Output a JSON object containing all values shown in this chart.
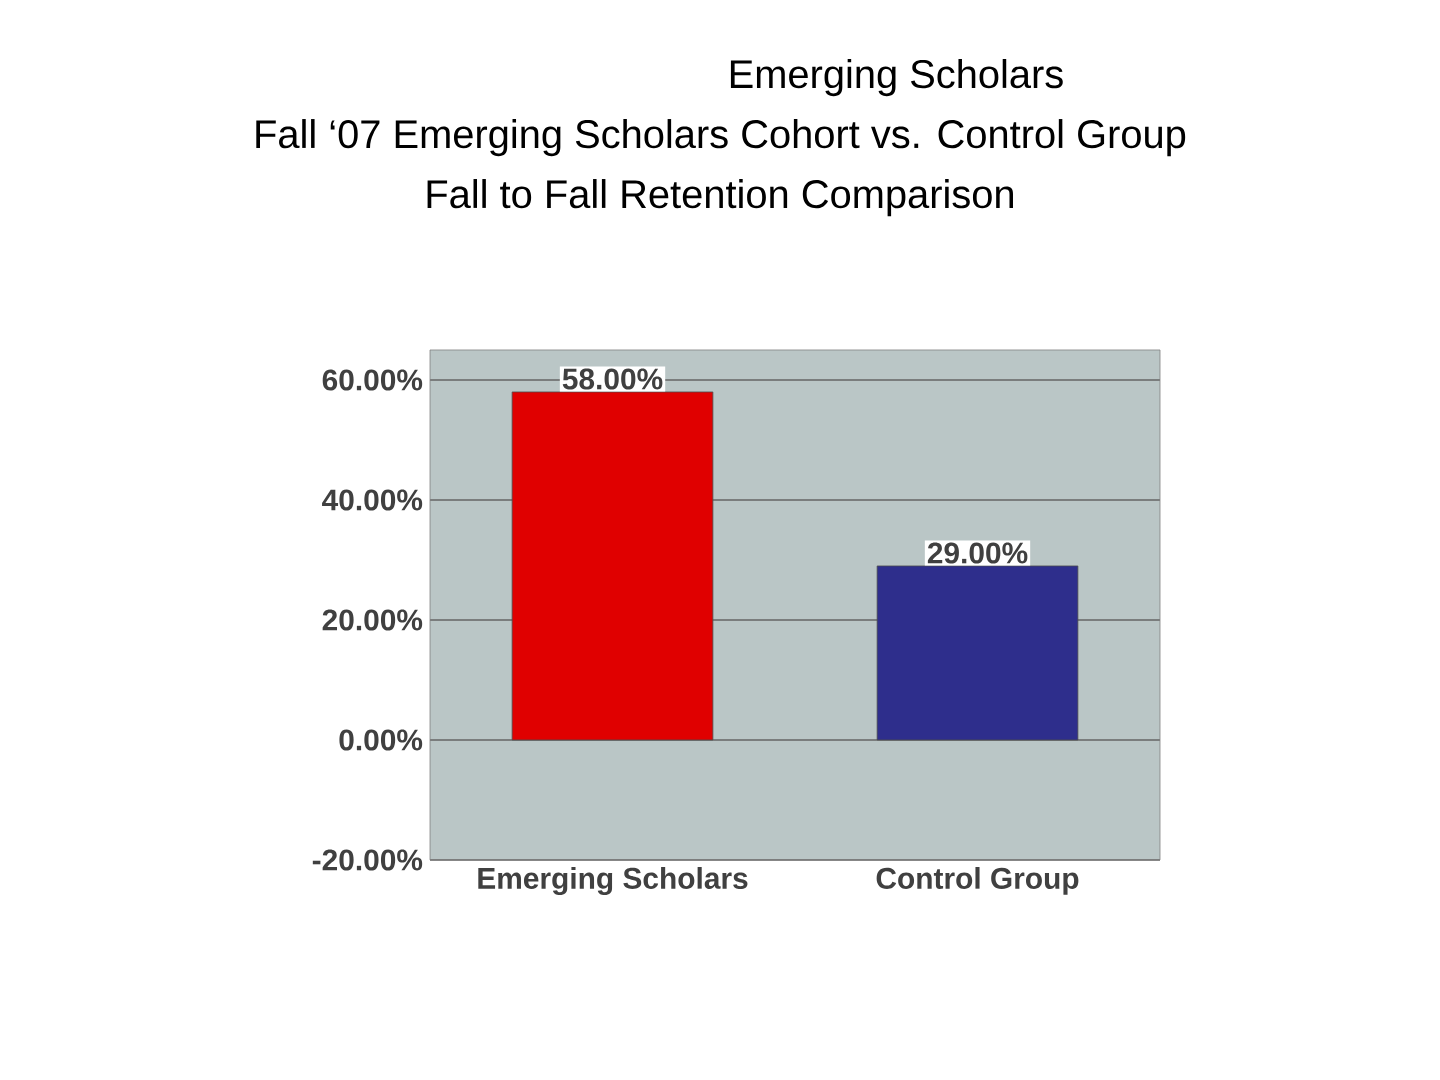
{
  "chart_data": {
    "type": "bar",
    "title": "Emerging Scholars",
    "subtitle": "Fall ‘07 Emerging Scholars Cohort vs. Control Group",
    "annotations": [
      "Fall to Fall Retention Comparison"
    ],
    "categories": [
      "Emerging Scholars",
      "Control Group"
    ],
    "values": [
      58,
      29
    ],
    "colors": [
      "#e00000",
      "#2e2e8c"
    ],
    "value_labels": [
      "58.00%",
      "29.00%"
    ],
    "ylim": [
      -20,
      65
    ],
    "yticks": [
      {
        "value": -20,
        "label": "-20.00%"
      },
      {
        "value": 0,
        "label": "0.00%"
      },
      {
        "value": 20,
        "label": "20.00%"
      },
      {
        "value": 40,
        "label": "40.00%"
      },
      {
        "value": 60,
        "label": "60.00%"
      }
    ],
    "grid": "y"
  }
}
